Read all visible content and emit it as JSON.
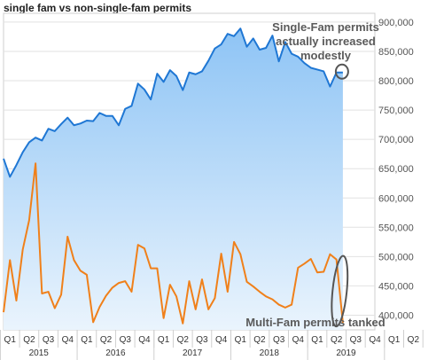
{
  "chart_data": {
    "type": "line",
    "title": "single fam vs non-single-fam permits",
    "ylim": [
      375000,
      915000
    ],
    "yticks": [
      400000,
      450000,
      500000,
      550000,
      600000,
      650000,
      700000,
      750000,
      800000,
      850000,
      900000
    ],
    "ytick_labels": [
      "400,000",
      "450,000",
      "500,000",
      "550,000",
      "600,000",
      "650,000",
      "700,000",
      "750,000",
      "800,000",
      "850,000",
      "900,000"
    ],
    "x_month_range": [
      1,
      59
    ],
    "quarter_labels": [
      "Q1",
      "Q2",
      "Q3",
      "Q4",
      "Q1",
      "Q2",
      "Q3",
      "Q4",
      "Q1",
      "Q2",
      "Q3",
      "Q4",
      "Q1",
      "Q2",
      "Q3",
      "Q4",
      "Q1",
      "Q2",
      "Q3",
      "Q4",
      "Q1",
      "Q2"
    ],
    "year_labels": [
      "2015",
      "2016",
      "2017",
      "2018",
      "2019"
    ],
    "grid": true,
    "series": [
      {
        "name": "Single-Fam",
        "color": "#1f77d4",
        "fill": "area-gradient",
        "values": [
          667000,
          636000,
          656000,
          678000,
          695000,
          703000,
          698000,
          718000,
          714000,
          726000,
          737000,
          724000,
          727000,
          732000,
          731000,
          745000,
          740000,
          740000,
          724000,
          752000,
          757000,
          795000,
          785000,
          768000,
          812000,
          798000,
          818000,
          808000,
          784000,
          814000,
          811000,
          816000,
          834000,
          855000,
          862000,
          880000,
          876000,
          889000,
          858000,
          872000,
          853000,
          856000,
          877000,
          833000,
          866000,
          846000,
          841000,
          830000,
          822000,
          819000,
          816000,
          790000,
          814000,
          814000
        ]
      },
      {
        "name": "Multi-Fam",
        "color": "#f0801a",
        "values": [
          405000,
          494000,
          425000,
          512000,
          562000,
          659000,
          437000,
          440000,
          412000,
          435000,
          534000,
          494000,
          476000,
          469000,
          388000,
          414000,
          433000,
          447000,
          455000,
          458000,
          440000,
          520000,
          514000,
          480000,
          480000,
          395000,
          452000,
          432000,
          386000,
          458000,
          410000,
          461000,
          410000,
          429000,
          505000,
          440000,
          525000,
          504000,
          457000,
          449000,
          440000,
          432000,
          427000,
          418000,
          413000,
          418000,
          481000,
          488000,
          496000,
          473000,
          474000,
          504000,
          495000,
          387000
        ]
      }
    ],
    "annotations": [
      {
        "text": "Single-Fam permits actually increased modestly"
      },
      {
        "text": "Multi-Fam permits tanked"
      }
    ]
  }
}
